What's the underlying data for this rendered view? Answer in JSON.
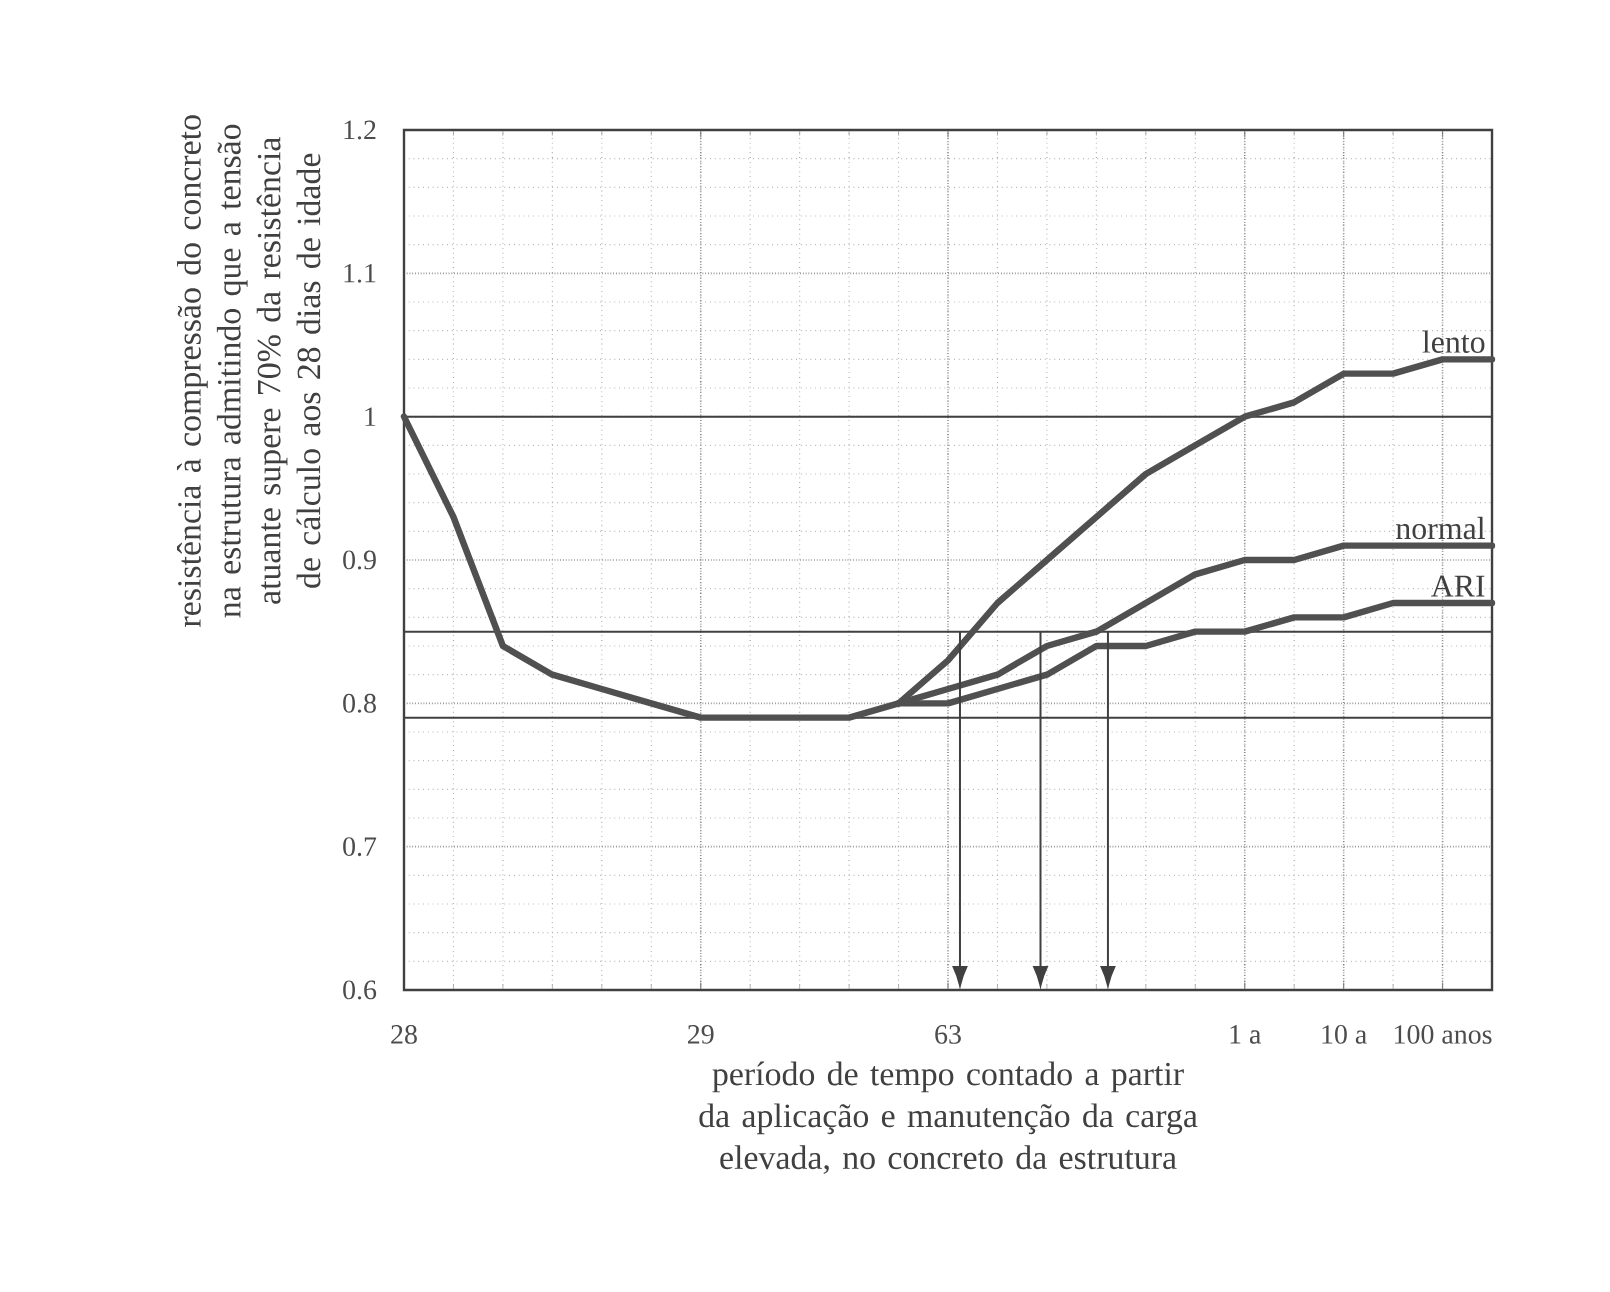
{
  "chart_data": {
    "type": "line",
    "xlabel": "período de tempo contado a partir da aplicação e manutenção da carga elevada, no concreto da estrutura",
    "ylabel": "resistência à compressão do concreto na estrutura admitindo que a tensão atuante supere 70% da resistência de cálculo aos 28 dias de idade",
    "categories": [
      "28",
      null,
      null,
      null,
      null,
      null,
      "29",
      null,
      null,
      null,
      null,
      "63",
      null,
      null,
      null,
      null,
      null,
      "1 a",
      null,
      "10 a",
      null,
      "100 anos",
      null
    ],
    "ylim": [
      0.6,
      1.2
    ],
    "yticks": [
      0.6,
      0.7,
      0.8,
      0.9,
      1,
      1.1,
      1.2
    ],
    "grid": true,
    "line_style": "solid",
    "marker": "none",
    "series": [
      {
        "name": "lento",
        "color": "#505050",
        "values": [
          1.0,
          0.93,
          0.84,
          0.82,
          0.81,
          0.8,
          0.79,
          0.79,
          0.79,
          0.79,
          0.8,
          0.83,
          0.87,
          0.9,
          0.93,
          0.96,
          0.98,
          1.0,
          1.01,
          1.03,
          1.03,
          1.04,
          1.04
        ]
      },
      {
        "name": "normal",
        "color": "#505050",
        "values": [
          null,
          null,
          null,
          null,
          null,
          null,
          null,
          null,
          null,
          null,
          0.8,
          0.81,
          0.82,
          0.84,
          0.85,
          0.87,
          0.89,
          0.9,
          0.9,
          0.91,
          0.91,
          0.91,
          0.91
        ]
      },
      {
        "name": "ARI",
        "color": "#505050",
        "values": [
          null,
          null,
          null,
          null,
          null,
          null,
          null,
          null,
          null,
          null,
          0.8,
          0.8,
          0.81,
          0.82,
          0.84,
          0.84,
          0.85,
          0.85,
          0.86,
          0.86,
          0.87,
          0.87,
          0.87
        ]
      }
    ],
    "ref_lines": [
      {
        "axis": "y",
        "value": 1.0,
        "color": "#404040"
      },
      {
        "axis": "y",
        "value": 0.85,
        "color": "#404040"
      },
      {
        "axis": "y",
        "value": 0.79,
        "color": "#404040"
      }
    ]
  }
}
